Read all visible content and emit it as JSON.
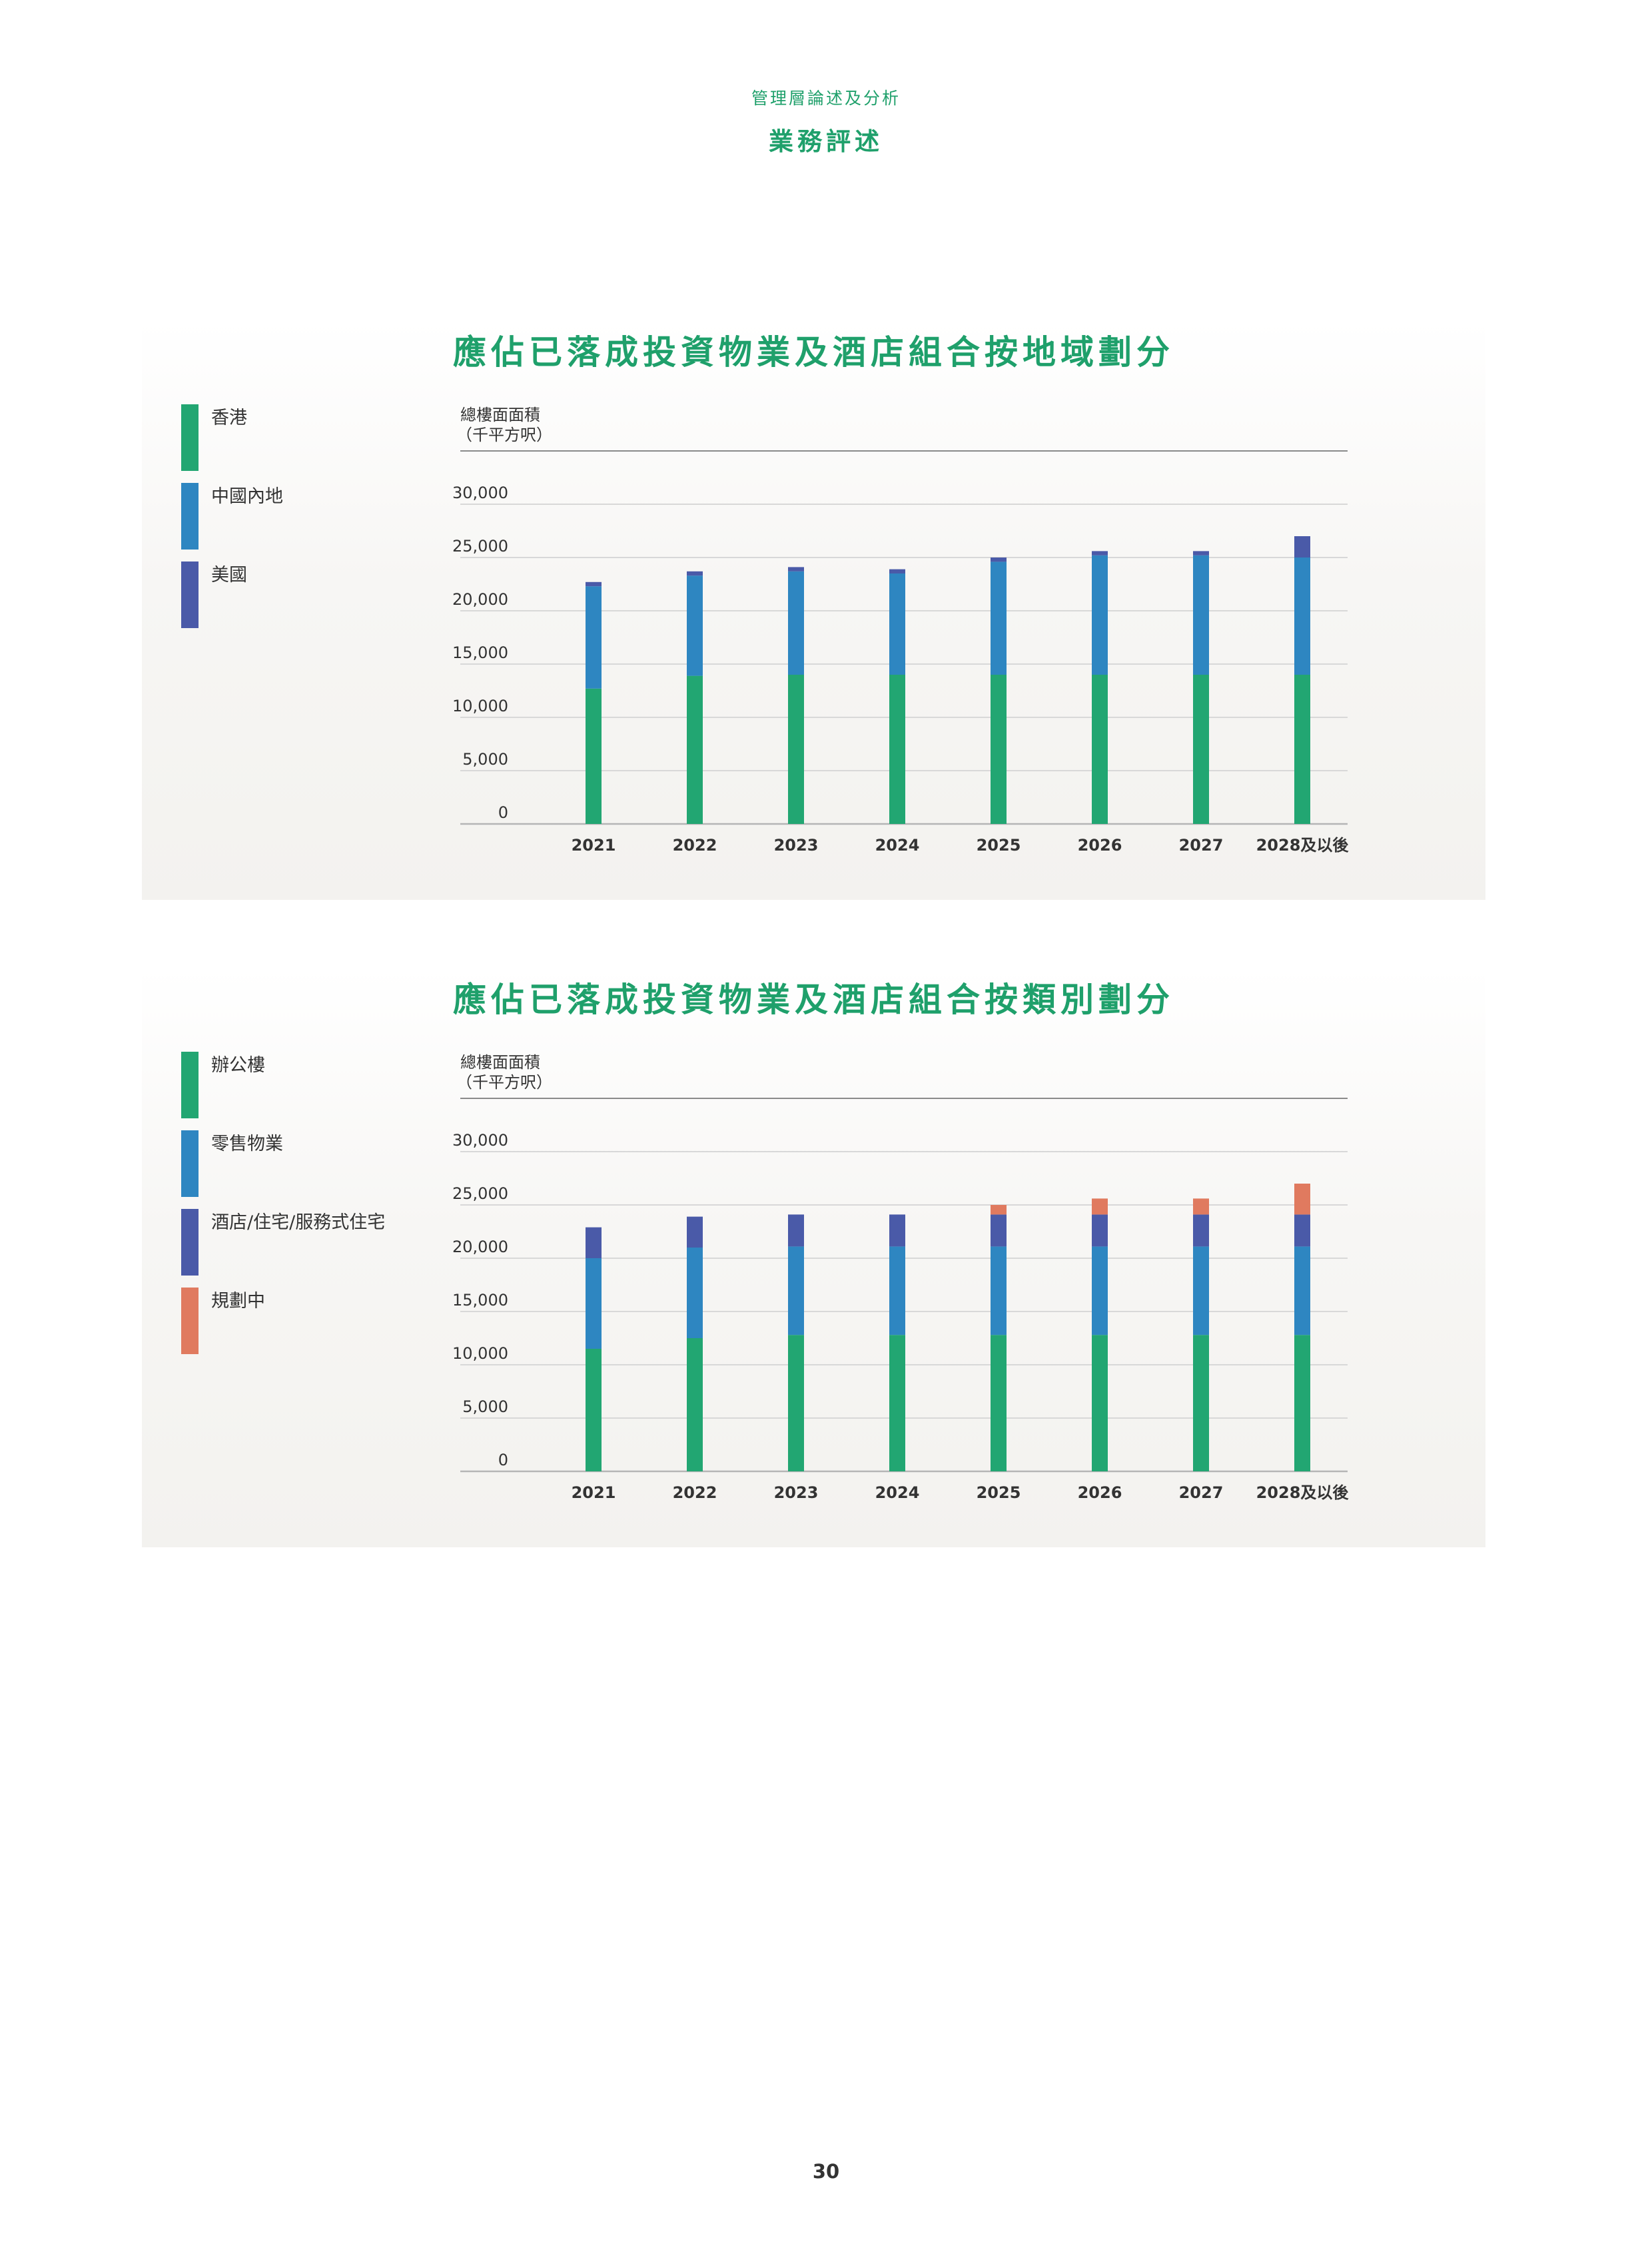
{
  "header": {
    "section": "管理層論述及分析",
    "title": "業務評述"
  },
  "page_number": "30",
  "chart_data": [
    {
      "type": "bar",
      "stacked": true,
      "title": "應佔已落成投資物業及酒店組合按地域劃分",
      "ylabel": "總樓面面積",
      "yunit": "（千平方呎）",
      "ylim": [
        0,
        35000
      ],
      "yticks": [
        0,
        5000,
        10000,
        15000,
        20000,
        25000,
        30000
      ],
      "ytick_labels": [
        "0",
        "5,000",
        "10,000",
        "15,000",
        "20,000",
        "25,000",
        "30,000"
      ],
      "grid": true,
      "legend_position": "left",
      "categories": [
        "2021",
        "2022",
        "2023",
        "2024",
        "2025",
        "2026",
        "2027",
        "2028及以後"
      ],
      "series": [
        {
          "name": "香港",
          "color": "#22a672",
          "values": [
            12700,
            13900,
            14000,
            14000,
            14000,
            14000,
            14000,
            14000
          ]
        },
        {
          "name": "中國內地",
          "color": "#2e86c1",
          "values": [
            9600,
            9400,
            9700,
            9500,
            10600,
            11200,
            11200,
            11000
          ]
        },
        {
          "name": "美國",
          "color": "#4a5aa8",
          "values": [
            400,
            400,
            400,
            400,
            400,
            400,
            400,
            2000
          ]
        }
      ]
    },
    {
      "type": "bar",
      "stacked": true,
      "title": "應佔已落成投資物業及酒店組合按類別劃分",
      "ylabel": "總樓面面積",
      "yunit": "（千平方呎）",
      "ylim": [
        0,
        35000
      ],
      "yticks": [
        0,
        5000,
        10000,
        15000,
        20000,
        25000,
        30000
      ],
      "ytick_labels": [
        "0",
        "5,000",
        "10,000",
        "15,000",
        "20,000",
        "25,000",
        "30,000"
      ],
      "grid": true,
      "legend_position": "left",
      "categories": [
        "2021",
        "2022",
        "2023",
        "2024",
        "2025",
        "2026",
        "2027",
        "2028及以後"
      ],
      "series": [
        {
          "name": "辦公樓",
          "color": "#22a672",
          "values": [
            11500,
            12500,
            12800,
            12800,
            12800,
            12800,
            12800,
            12800
          ]
        },
        {
          "name": "零售物業",
          "color": "#2e86c1",
          "values": [
            8500,
            8500,
            8300,
            8300,
            8300,
            8300,
            8300,
            8300
          ]
        },
        {
          "name": "酒店/住宅/服務式住宅",
          "color": "#4a5aa8",
          "values": [
            2900,
            2900,
            3000,
            3000,
            3000,
            3000,
            3000,
            3000
          ]
        },
        {
          "name": "規劃中",
          "color": "#e07a5f",
          "values": [
            0,
            0,
            0,
            0,
            900,
            1500,
            1500,
            2900
          ]
        }
      ]
    }
  ]
}
